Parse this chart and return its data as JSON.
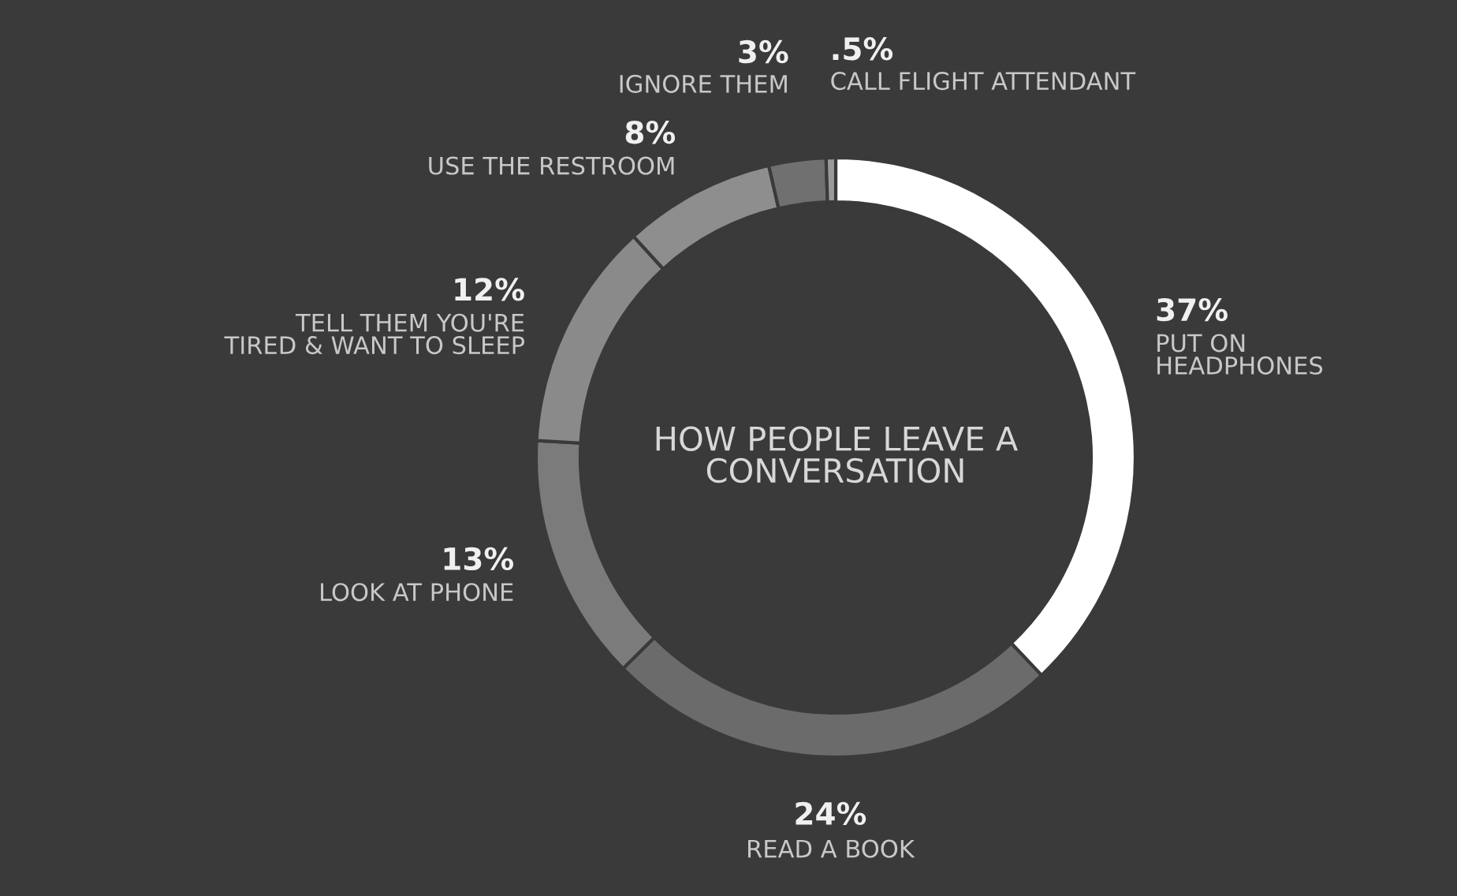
{
  "chart_data": {
    "type": "donut",
    "title": "HOW PEOPLE LEAVE A\nCONVERSATION",
    "categories": [
      "PUT ON\nHEADPHONES",
      "READ A BOOK",
      "LOOK AT PHONE",
      "TELL THEM YOU'RE\nTIRED & WANT TO SLEEP",
      "USE THE RESTROOM",
      "IGNORE THEM",
      "CALL FLIGHT ATTENDANT"
    ],
    "values": [
      37,
      24,
      13,
      12,
      8,
      3,
      0.5
    ],
    "value_labels": [
      "37%",
      "24%",
      "13%",
      "12%",
      "8%",
      "3%",
      ".5%"
    ],
    "colors": [
      "#ffffff",
      "#6b6b6b",
      "#7b7b7b",
      "#8a8a8a",
      "#8e8e8e",
      "#707070",
      "#9a9a9a"
    ],
    "legend": false
  }
}
